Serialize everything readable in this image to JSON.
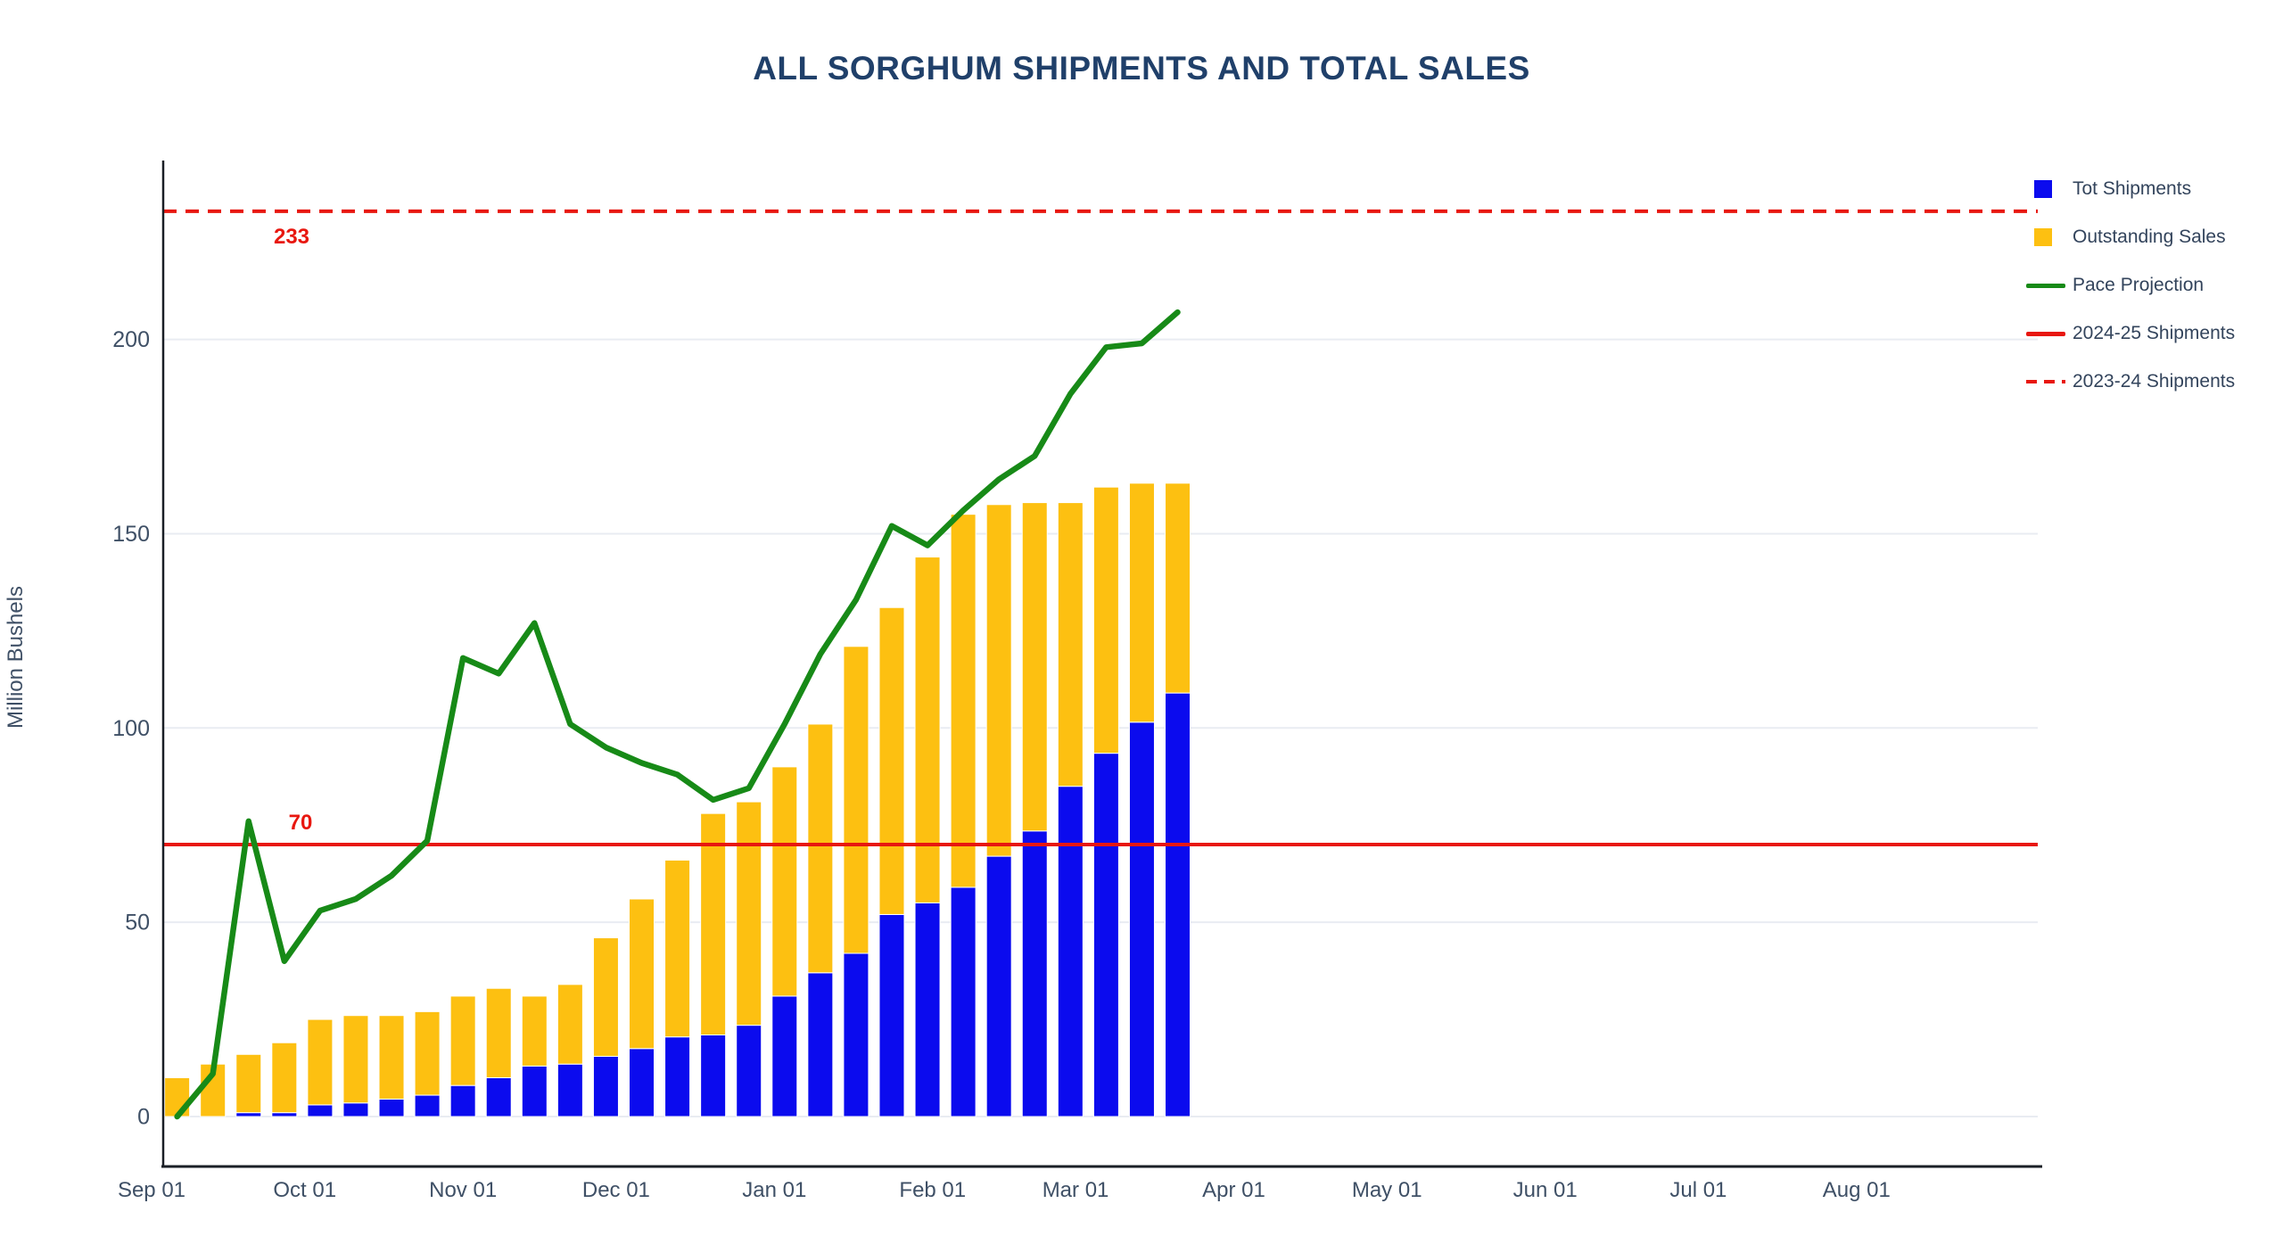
{
  "title": "ALL SORGHUM SHIPMENTS AND TOTAL SALES",
  "y_axis_title": "Million Bushels",
  "colors": {
    "shipments_blue": "#0b0bee",
    "sales_yellow": "#fdc011",
    "pace_green": "#178a17",
    "reference_red": "#e8170f",
    "title_text": "#20406a",
    "tick_text": "#3f5066",
    "legend_text": "#33445c",
    "gridline": "#e9ecf2",
    "axis_spine": "#1a1f26",
    "background": "#ffffff"
  },
  "chart_data": {
    "type": "bar",
    "subtype": "stacked-bars-with-line-overlay",
    "title": "ALL SORGHUM SHIPMENTS AND TOTAL SALES",
    "xlabel": "",
    "ylabel": "Million Bushels",
    "grid": "horizontal-only",
    "legend_position": "right-outside-top",
    "x_tick_labels": [
      "Sep 01",
      "Oct 01",
      "Nov 01",
      "Dec 01",
      "Jan 01",
      "Feb 01",
      "Mar 01",
      "Apr 01",
      "May 01",
      "Jun 01",
      "Jul 01",
      "Aug 01"
    ],
    "x_tick_day_offsets": [
      0,
      30,
      61,
      91,
      122,
      153,
      181,
      212,
      242,
      273,
      303,
      334
    ],
    "y_ticks": [
      0,
      50,
      100,
      150,
      200
    ],
    "y_axis_range": [
      -13,
      246
    ],
    "bar_day_offsets": [
      5,
      12,
      19,
      26,
      33,
      40,
      47,
      54,
      61,
      68,
      75,
      82,
      89,
      96,
      103,
      110,
      117,
      124,
      131,
      138,
      145,
      152,
      159,
      166,
      173,
      180,
      187,
      194,
      201
    ],
    "series": [
      {
        "name": "Tot Shipments",
        "role": "stack-bottom",
        "color": "#0b0bee",
        "values": [
          0,
          0,
          1,
          1,
          3,
          3.5,
          4.5,
          5.5,
          8,
          10,
          13,
          13.5,
          15.5,
          17.5,
          20.5,
          21,
          23.5,
          31,
          37,
          42,
          52,
          55,
          59,
          67,
          73.5,
          85,
          93.5,
          101.5,
          109
        ]
      },
      {
        "name": "Outstanding Sales",
        "role": "stack-top",
        "color": "#fdc011",
        "values": [
          10,
          13.5,
          15,
          18,
          22,
          22.5,
          21.5,
          21.5,
          23,
          23,
          18,
          20.5,
          30.5,
          38.5,
          45.5,
          57,
          57.5,
          59,
          64,
          79,
          79,
          89,
          96,
          90.5,
          84.5,
          73,
          68.5,
          61.5,
          54
        ]
      },
      {
        "name": "Pace Projection",
        "role": "line",
        "color": "#178a17",
        "values": [
          0,
          11,
          76,
          40,
          53,
          56,
          62,
          71,
          118,
          114,
          127,
          101,
          95,
          91,
          88,
          81.5,
          84.5,
          101,
          119,
          133,
          152,
          147,
          156,
          164,
          170,
          186,
          198,
          199,
          207
        ]
      }
    ],
    "stack_totals": [
      10,
      13.5,
      16,
      19,
      25,
      26,
      26,
      27,
      31,
      33,
      31,
      34,
      46,
      56,
      66,
      78,
      81,
      90,
      101,
      121,
      131,
      144,
      155,
      157.5,
      158,
      158,
      162,
      163,
      163
    ],
    "reference_lines": [
      {
        "name": "2024-25 Shipments",
        "value": 70,
        "style": "solid",
        "color": "#e8170f",
        "label": "70"
      },
      {
        "name": "2023-24 Shipments",
        "value": 233,
        "style": "dashed",
        "color": "#e8170f",
        "label": "233"
      }
    ],
    "legend": [
      {
        "label": "Tot Shipments",
        "swatch": "square",
        "color": "#0b0bee"
      },
      {
        "label": "Outstanding Sales",
        "swatch": "square",
        "color": "#fdc011"
      },
      {
        "label": "Pace Projection",
        "swatch": "line",
        "color": "#178a17"
      },
      {
        "label": "2024-25 Shipments",
        "swatch": "line",
        "color": "#e8170f"
      },
      {
        "label": "2023-24 Shipments",
        "swatch": "dashed-line",
        "color": "#e8170f"
      }
    ],
    "annotations": [
      {
        "text": "233",
        "attached_to": "2023-24 Shipments"
      },
      {
        "text": "70",
        "attached_to": "2024-25 Shipments"
      }
    ]
  }
}
